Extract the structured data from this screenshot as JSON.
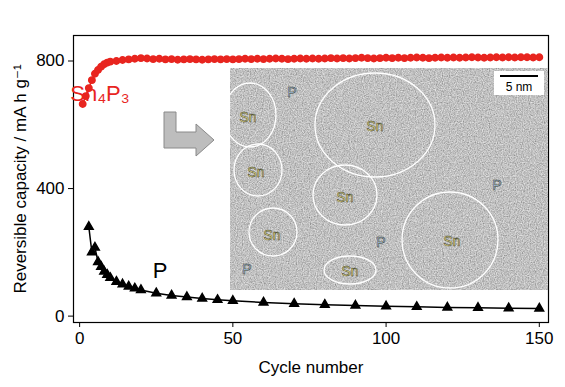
{
  "chart_data": {
    "type": "line",
    "x_label": "Cycle number",
    "y_label": "Reversible capacity / mA h g⁻¹",
    "xlim": [
      -2,
      153
    ],
    "xticks": [
      0,
      50,
      100,
      150
    ],
    "ylim": [
      -20,
      880
    ],
    "yticks": [
      0,
      400,
      800
    ],
    "grid": false,
    "series": [
      {
        "name": "Sn₄P₃",
        "color": "#e8251f",
        "marker": "circle",
        "line_style": "solid",
        "x": [
          1,
          2,
          3,
          4,
          5,
          6,
          7,
          8,
          9,
          10,
          12,
          14,
          16,
          18,
          20,
          22,
          24,
          26,
          28,
          30,
          32,
          34,
          36,
          38,
          40,
          42,
          44,
          46,
          48,
          50,
          52,
          54,
          56,
          58,
          60,
          62,
          64,
          66,
          68,
          70,
          72,
          74,
          76,
          78,
          80,
          82,
          84,
          86,
          88,
          90,
          92,
          94,
          96,
          98,
          100,
          102,
          104,
          106,
          108,
          110,
          112,
          114,
          116,
          118,
          120,
          122,
          124,
          126,
          128,
          130,
          132,
          134,
          136,
          138,
          140,
          142,
          144,
          146,
          148,
          150
        ],
        "values": [
          665,
          690,
          715,
          740,
          760,
          772,
          782,
          790,
          795,
          798,
          800,
          803,
          805,
          807,
          809,
          808,
          806,
          807,
          805,
          806,
          804,
          805,
          806,
          805,
          804,
          805,
          806,
          805,
          806,
          805,
          806,
          807,
          806,
          807,
          806,
          807,
          808,
          807,
          806,
          807,
          808,
          807,
          808,
          807,
          808,
          809,
          808,
          809,
          808,
          809,
          810,
          809,
          808,
          809,
          810,
          809,
          810,
          809,
          810,
          811,
          810,
          809,
          810,
          811,
          810,
          811,
          810,
          811,
          812,
          811,
          810,
          811,
          812,
          811,
          812,
          811,
          812,
          812,
          811,
          812
        ]
      },
      {
        "name": "P",
        "color": "#000000",
        "marker": "triangle",
        "line_style": "solid",
        "x": [
          3,
          4,
          5,
          6,
          7,
          8,
          9,
          10,
          12,
          14,
          16,
          18,
          20,
          25,
          30,
          35,
          40,
          45,
          50,
          60,
          70,
          80,
          90,
          100,
          110,
          120,
          130,
          140,
          150
        ],
        "values": [
          280,
          200,
          215,
          170,
          155,
          140,
          130,
          120,
          108,
          100,
          93,
          87,
          82,
          72,
          65,
          60,
          55,
          51,
          48,
          43,
          39,
          36,
          33,
          31,
          29,
          27,
          26,
          25,
          24
        ]
      }
    ],
    "inset": {
      "labels": [
        "Sn",
        "P",
        "Sn",
        "P",
        "Sn",
        "Sn",
        "Sn",
        "P",
        "Sn",
        "P",
        "Sn"
      ],
      "scale_bar": "5 nm"
    }
  }
}
